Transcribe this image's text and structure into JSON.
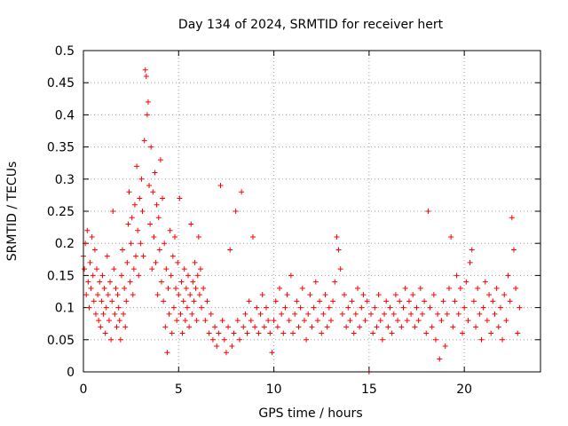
{
  "chart_data": {
    "type": "scatter",
    "title": "Day 134 of 2024, SRMTID for receiver hert",
    "xlabel": "GPS time / hours",
    "ylabel": "SRMTID / TECUs",
    "xlim": [
      0,
      24
    ],
    "ylim": [
      0,
      0.5
    ],
    "grid": true,
    "marker": "plus",
    "color": "#ff0000",
    "x_ticks": [
      {
        "value": 0,
        "label": "0"
      },
      {
        "value": 5,
        "label": "5"
      },
      {
        "value": 10,
        "label": "10"
      },
      {
        "value": 15,
        "label": "15"
      },
      {
        "value": 20,
        "label": "20"
      }
    ],
    "y_ticks": [
      {
        "value": 0,
        "label": "0"
      },
      {
        "value": 0.05,
        "label": "0.05"
      },
      {
        "value": 0.1,
        "label": "0.1"
      },
      {
        "value": 0.15,
        "label": "0.15"
      },
      {
        "value": 0.2,
        "label": "0.2"
      },
      {
        "value": 0.25,
        "label": "0.25"
      },
      {
        "value": 0.3,
        "label": "0.3"
      },
      {
        "value": 0.35,
        "label": "0.35"
      },
      {
        "value": 0.4,
        "label": "0.4"
      },
      {
        "value": 0.45,
        "label": "0.45"
      },
      {
        "value": 0.5,
        "label": "0.5"
      }
    ],
    "series": [
      {
        "name": "SRMTID",
        "points": [
          [
            0.0,
            0.18
          ],
          [
            0.05,
            0.16
          ],
          [
            0.1,
            0.2
          ],
          [
            0.15,
            0.12
          ],
          [
            0.2,
            0.22
          ],
          [
            0.25,
            0.14
          ],
          [
            0.3,
            0.1
          ],
          [
            0.35,
            0.17
          ],
          [
            0.4,
            0.13
          ],
          [
            0.45,
            0.21
          ],
          [
            0.5,
            0.15
          ],
          [
            0.55,
            0.11
          ],
          [
            0.6,
            0.19
          ],
          [
            0.65,
            0.09
          ],
          [
            0.7,
            0.16
          ],
          [
            0.75,
            0.12
          ],
          [
            0.8,
            0.08
          ],
          [
            0.85,
            0.14
          ],
          [
            0.9,
            0.07
          ],
          [
            0.95,
            0.11
          ],
          [
            1.0,
            0.15
          ],
          [
            1.05,
            0.09
          ],
          [
            1.1,
            0.13
          ],
          [
            1.15,
            0.06
          ],
          [
            1.2,
            0.1
          ],
          [
            1.25,
            0.18
          ],
          [
            1.3,
            0.12
          ],
          [
            1.35,
            0.08
          ],
          [
            1.4,
            0.14
          ],
          [
            1.45,
            0.05
          ],
          [
            1.5,
            0.11
          ],
          [
            1.55,
            0.25
          ],
          [
            1.6,
            0.16
          ],
          [
            1.65,
            0.09
          ],
          [
            1.7,
            0.13
          ],
          [
            1.75,
            0.07
          ],
          [
            1.8,
            0.12
          ],
          [
            1.85,
            0.1
          ],
          [
            1.9,
            0.08
          ],
          [
            1.95,
            0.05
          ],
          [
            2.0,
            0.15
          ],
          [
            2.05,
            0.19
          ],
          [
            2.1,
            0.09
          ],
          [
            2.15,
            0.13
          ],
          [
            2.2,
            0.07
          ],
          [
            2.25,
            0.11
          ],
          [
            2.3,
            0.17
          ],
          [
            2.35,
            0.23
          ],
          [
            2.4,
            0.28
          ],
          [
            2.45,
            0.14
          ],
          [
            2.5,
            0.2
          ],
          [
            2.55,
            0.24
          ],
          [
            2.6,
            0.12
          ],
          [
            2.65,
            0.16
          ],
          [
            2.7,
            0.26
          ],
          [
            2.75,
            0.18
          ],
          [
            2.8,
            0.32
          ],
          [
            2.85,
            0.22
          ],
          [
            2.9,
            0.15
          ],
          [
            2.95,
            0.27
          ],
          [
            3.0,
            0.2
          ],
          [
            3.05,
            0.3
          ],
          [
            3.1,
            0.25
          ],
          [
            3.15,
            0.18
          ],
          [
            3.2,
            0.36
          ],
          [
            3.25,
            0.47
          ],
          [
            3.3,
            0.46
          ],
          [
            3.35,
            0.4
          ],
          [
            3.4,
            0.42
          ],
          [
            3.45,
            0.29
          ],
          [
            3.5,
            0.23
          ],
          [
            3.55,
            0.35
          ],
          [
            3.6,
            0.16
          ],
          [
            3.65,
            0.28
          ],
          [
            3.7,
            0.21
          ],
          [
            3.75,
            0.31
          ],
          [
            3.8,
            0.17
          ],
          [
            3.85,
            0.26
          ],
          [
            3.9,
            0.12
          ],
          [
            3.95,
            0.24
          ],
          [
            4.0,
            0.19
          ],
          [
            4.05,
            0.33
          ],
          [
            4.1,
            0.14
          ],
          [
            4.15,
            0.27
          ],
          [
            4.2,
            0.11
          ],
          [
            4.25,
            0.2
          ],
          [
            4.3,
            0.07
          ],
          [
            4.35,
            0.16
          ],
          [
            4.4,
            0.03
          ],
          [
            4.45,
            0.13
          ],
          [
            4.5,
            0.09
          ],
          [
            4.55,
            0.22
          ],
          [
            4.6,
            0.15
          ],
          [
            4.65,
            0.06
          ],
          [
            4.7,
            0.18
          ],
          [
            4.75,
            0.1
          ],
          [
            4.8,
            0.21
          ],
          [
            4.85,
            0.13
          ],
          [
            4.9,
            0.08
          ],
          [
            4.95,
            0.17
          ],
          [
            5.0,
            0.12
          ],
          [
            5.05,
            0.27
          ],
          [
            5.1,
            0.09
          ],
          [
            5.15,
            0.14
          ],
          [
            5.2,
            0.06
          ],
          [
            5.25,
            0.11
          ],
          [
            5.3,
            0.16
          ],
          [
            5.35,
            0.08
          ],
          [
            5.4,
            0.13
          ],
          [
            5.45,
            0.1
          ],
          [
            5.5,
            0.15
          ],
          [
            5.55,
            0.07
          ],
          [
            5.6,
            0.12
          ],
          [
            5.65,
            0.23
          ],
          [
            5.7,
            0.09
          ],
          [
            5.75,
            0.14
          ],
          [
            5.8,
            0.11
          ],
          [
            5.85,
            0.17
          ],
          [
            5.9,
            0.13
          ],
          [
            5.95,
            0.08
          ],
          [
            6.0,
            0.15
          ],
          [
            6.05,
            0.21
          ],
          [
            6.1,
            0.12
          ],
          [
            6.15,
            0.16
          ],
          [
            6.2,
            0.1
          ],
          [
            6.3,
            0.13
          ],
          [
            6.4,
            0.08
          ],
          [
            6.5,
            0.11
          ],
          [
            6.6,
            0.06
          ],
          [
            6.7,
            0.09
          ],
          [
            6.8,
            0.05
          ],
          [
            6.9,
            0.07
          ],
          [
            7.0,
            0.04
          ],
          [
            7.1,
            0.06
          ],
          [
            7.2,
            0.29
          ],
          [
            7.3,
            0.08
          ],
          [
            7.4,
            0.05
          ],
          [
            7.5,
            0.03
          ],
          [
            7.6,
            0.07
          ],
          [
            7.7,
            0.19
          ],
          [
            7.8,
            0.04
          ],
          [
            7.9,
            0.06
          ],
          [
            8.0,
            0.25
          ],
          [
            8.1,
            0.08
          ],
          [
            8.2,
            0.05
          ],
          [
            8.3,
            0.28
          ],
          [
            8.4,
            0.07
          ],
          [
            8.5,
            0.09
          ],
          [
            8.6,
            0.06
          ],
          [
            8.7,
            0.11
          ],
          [
            8.8,
            0.08
          ],
          [
            8.9,
            0.21
          ],
          [
            9.0,
            0.07
          ],
          [
            9.1,
            0.1
          ],
          [
            9.2,
            0.06
          ],
          [
            9.3,
            0.09
          ],
          [
            9.4,
            0.12
          ],
          [
            9.5,
            0.07
          ],
          [
            9.6,
            0.1
          ],
          [
            9.7,
            0.08
          ],
          [
            9.8,
            0.06
          ],
          [
            9.9,
            0.03
          ],
          [
            10.0,
            0.08
          ],
          [
            10.1,
            0.11
          ],
          [
            10.2,
            0.07
          ],
          [
            10.3,
            0.13
          ],
          [
            10.4,
            0.09
          ],
          [
            10.5,
            0.06
          ],
          [
            10.6,
            0.1
          ],
          [
            10.7,
            0.12
          ],
          [
            10.8,
            0.08
          ],
          [
            10.9,
            0.15
          ],
          [
            11.0,
            0.06
          ],
          [
            11.1,
            0.09
          ],
          [
            11.2,
            0.11
          ],
          [
            11.3,
            0.07
          ],
          [
            11.4,
            0.1
          ],
          [
            11.5,
            0.13
          ],
          [
            11.6,
            0.08
          ],
          [
            11.7,
            0.05
          ],
          [
            11.8,
            0.09
          ],
          [
            11.9,
            0.12
          ],
          [
            12.0,
            0.07
          ],
          [
            12.1,
            0.1
          ],
          [
            12.2,
            0.14
          ],
          [
            12.3,
            0.08
          ],
          [
            12.4,
            0.11
          ],
          [
            12.5,
            0.06
          ],
          [
            12.6,
            0.09
          ],
          [
            12.7,
            0.12
          ],
          [
            12.8,
            0.07
          ],
          [
            12.9,
            0.1
          ],
          [
            13.0,
            0.08
          ],
          [
            13.1,
            0.11
          ],
          [
            13.2,
            0.14
          ],
          [
            13.3,
            0.21
          ],
          [
            13.4,
            0.19
          ],
          [
            13.5,
            0.16
          ],
          [
            13.6,
            0.09
          ],
          [
            13.7,
            0.12
          ],
          [
            13.8,
            0.07
          ],
          [
            13.9,
            0.1
          ],
          [
            14.0,
            0.08
          ],
          [
            14.1,
            0.11
          ],
          [
            14.2,
            0.06
          ],
          [
            14.3,
            0.09
          ],
          [
            14.4,
            0.13
          ],
          [
            14.5,
            0.07
          ],
          [
            14.6,
            0.1
          ],
          [
            14.7,
            0.12
          ],
          [
            14.8,
            0.08
          ],
          [
            14.9,
            0.11
          ],
          [
            15.0,
            0.0
          ],
          [
            15.1,
            0.09
          ],
          [
            15.2,
            0.06
          ],
          [
            15.3,
            0.1
          ],
          [
            15.4,
            0.07
          ],
          [
            15.5,
            0.12
          ],
          [
            15.6,
            0.08
          ],
          [
            15.7,
            0.05
          ],
          [
            15.8,
            0.09
          ],
          [
            15.9,
            0.11
          ],
          [
            16.0,
            0.07
          ],
          [
            16.1,
            0.1
          ],
          [
            16.2,
            0.06
          ],
          [
            16.3,
            0.09
          ],
          [
            16.4,
            0.12
          ],
          [
            16.5,
            0.08
          ],
          [
            16.6,
            0.11
          ],
          [
            16.7,
            0.07
          ],
          [
            16.8,
            0.1
          ],
          [
            16.9,
            0.13
          ],
          [
            17.0,
            0.08
          ],
          [
            17.1,
            0.11
          ],
          [
            17.2,
            0.09
          ],
          [
            17.3,
            0.12
          ],
          [
            17.4,
            0.07
          ],
          [
            17.5,
            0.1
          ],
          [
            17.6,
            0.08
          ],
          [
            17.7,
            0.13
          ],
          [
            17.8,
            0.09
          ],
          [
            17.9,
            0.11
          ],
          [
            18.0,
            0.06
          ],
          [
            18.1,
            0.25
          ],
          [
            18.2,
            0.1
          ],
          [
            18.3,
            0.07
          ],
          [
            18.4,
            0.12
          ],
          [
            18.5,
            0.05
          ],
          [
            18.6,
            0.09
          ],
          [
            18.7,
            0.02
          ],
          [
            18.8,
            0.08
          ],
          [
            18.9,
            0.11
          ],
          [
            19.0,
            0.04
          ],
          [
            19.1,
            0.09
          ],
          [
            19.2,
            0.13
          ],
          [
            19.3,
            0.21
          ],
          [
            19.4,
            0.07
          ],
          [
            19.5,
            0.11
          ],
          [
            19.6,
            0.15
          ],
          [
            19.7,
            0.09
          ],
          [
            19.8,
            0.13
          ],
          [
            19.9,
            0.06
          ],
          [
            20.0,
            0.1
          ],
          [
            20.1,
            0.14
          ],
          [
            20.2,
            0.08
          ],
          [
            20.3,
            0.17
          ],
          [
            20.4,
            0.19
          ],
          [
            20.5,
            0.11
          ],
          [
            20.6,
            0.07
          ],
          [
            20.7,
            0.13
          ],
          [
            20.8,
            0.09
          ],
          [
            20.9,
            0.05
          ],
          [
            21.0,
            0.1
          ],
          [
            21.1,
            0.14
          ],
          [
            21.2,
            0.08
          ],
          [
            21.3,
            0.12
          ],
          [
            21.4,
            0.06
          ],
          [
            21.5,
            0.11
          ],
          [
            21.6,
            0.09
          ],
          [
            21.7,
            0.13
          ],
          [
            21.8,
            0.07
          ],
          [
            21.9,
            0.1
          ],
          [
            22.0,
            0.05
          ],
          [
            22.1,
            0.12
          ],
          [
            22.2,
            0.08
          ],
          [
            22.3,
            0.15
          ],
          [
            22.4,
            0.11
          ],
          [
            22.5,
            0.24
          ],
          [
            22.6,
            0.19
          ],
          [
            22.7,
            0.13
          ],
          [
            22.8,
            0.06
          ],
          [
            22.9,
            0.1
          ]
        ]
      }
    ]
  }
}
